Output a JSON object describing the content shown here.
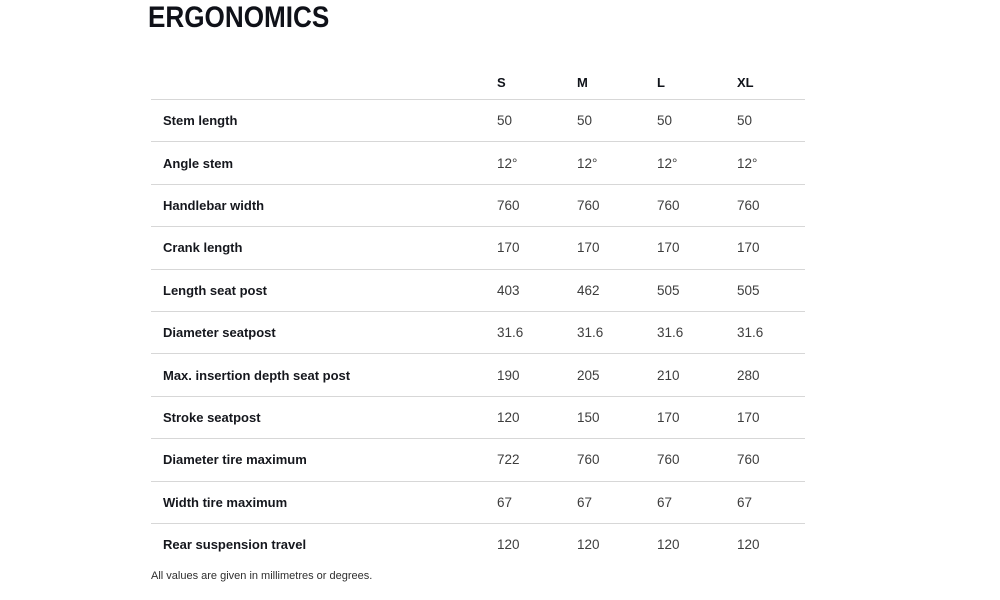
{
  "page": {
    "title": "ERGONOMICS",
    "footnote": "All values are given in millimetres or degrees."
  },
  "table": {
    "columns": [
      "S",
      "M",
      "L",
      "XL"
    ],
    "rows": [
      {
        "label": "Stem length",
        "values": [
          "50",
          "50",
          "50",
          "50"
        ]
      },
      {
        "label": "Angle stem",
        "values": [
          "12°",
          "12°",
          "12°",
          "12°"
        ]
      },
      {
        "label": "Handlebar width",
        "values": [
          "760",
          "760",
          "760",
          "760"
        ]
      },
      {
        "label": "Crank length",
        "values": [
          "170",
          "170",
          "170",
          "170"
        ]
      },
      {
        "label": "Length seat post",
        "values": [
          "403",
          "462",
          "505",
          "505"
        ]
      },
      {
        "label": "Diameter seatpost",
        "values": [
          "31.6",
          "31.6",
          "31.6",
          "31.6"
        ]
      },
      {
        "label": "Max. insertion depth seat post",
        "values": [
          "190",
          "205",
          "210",
          "280"
        ]
      },
      {
        "label": "Stroke seatpost",
        "values": [
          "120",
          "150",
          "170",
          "170"
        ]
      },
      {
        "label": "Diameter tire maximum",
        "values": [
          "722",
          "760",
          "760",
          "760"
        ]
      },
      {
        "label": "Width tire maximum",
        "values": [
          "67",
          "67",
          "67",
          "67"
        ]
      },
      {
        "label": "Rear suspension travel",
        "values": [
          "120",
          "120",
          "120",
          "120"
        ]
      }
    ]
  },
  "colors": {
    "title_text": "#0f1118",
    "label_text": "#15171d",
    "value_text": "#3d3d3d",
    "divider": "#d7d7d7",
    "background": "#ffffff"
  }
}
